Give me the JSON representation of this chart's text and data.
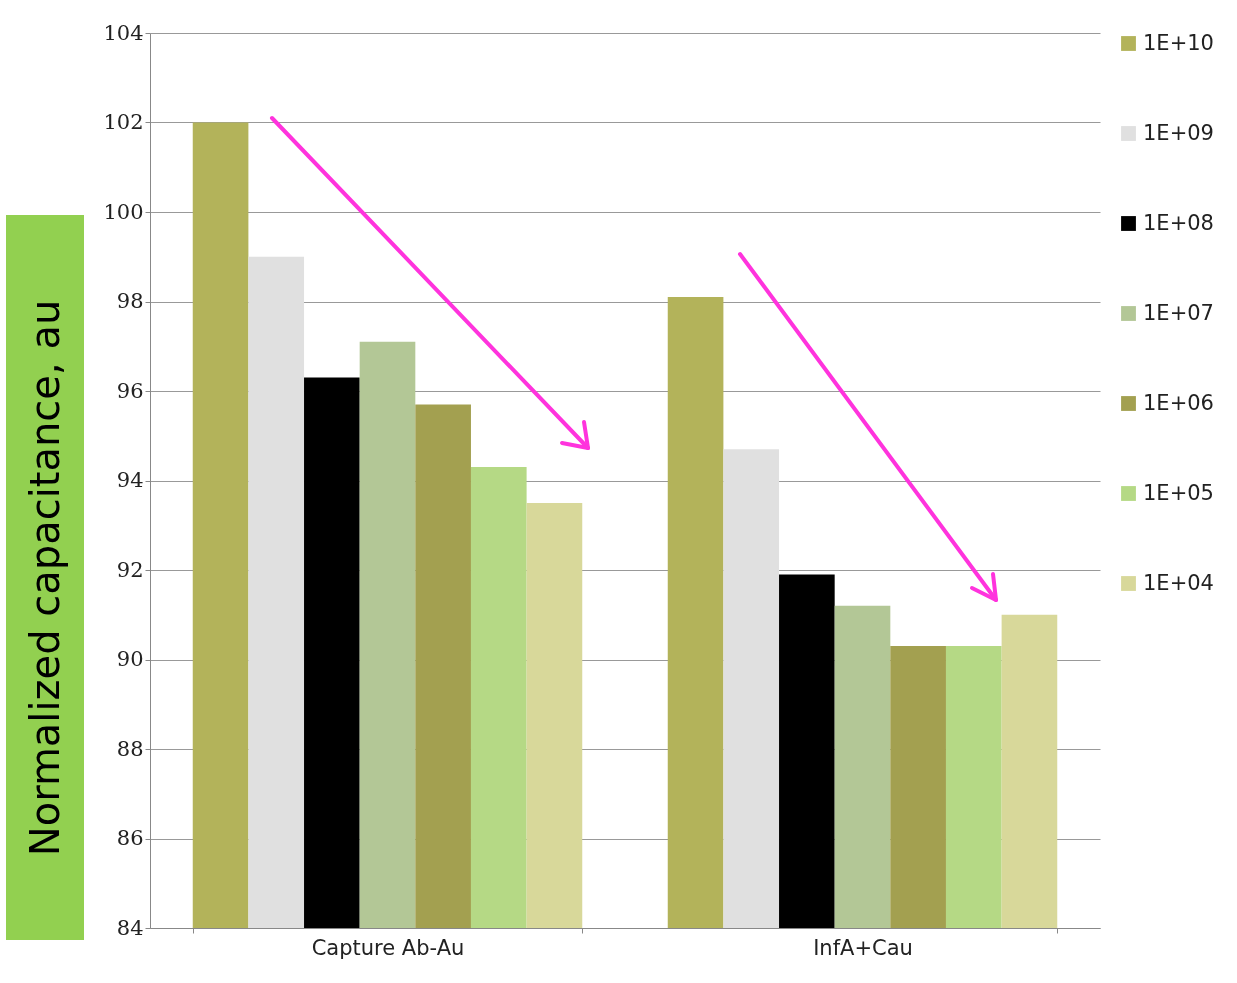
{
  "chart_data": {
    "type": "bar",
    "ylabel": "Normalized capacitance, au",
    "categories": [
      "Capture Ab-Au",
      "InfA+Cau"
    ],
    "series": [
      {
        "name": "1E+10",
        "color": "#b3b35a",
        "values": [
          102.0,
          98.1
        ]
      },
      {
        "name": "1E+09",
        "color": "#e0e0e0",
        "values": [
          99.0,
          94.7
        ]
      },
      {
        "name": "1E+08",
        "color": "#000000",
        "values": [
          96.3,
          91.9
        ]
      },
      {
        "name": "1E+07",
        "color": "#b3c796",
        "values": [
          97.1,
          91.2
        ]
      },
      {
        "name": "1E+06",
        "color": "#a3a050",
        "values": [
          95.7,
          90.3
        ]
      },
      {
        "name": "1E+05",
        "color": "#b5d985",
        "values": [
          94.3,
          90.3
        ]
      },
      {
        "name": "1E+04",
        "color": "#d8d89a",
        "values": [
          93.5,
          91.0
        ]
      }
    ],
    "ylim": [
      84,
      104
    ],
    "yticks": [
      84,
      86,
      88,
      90,
      92,
      94,
      96,
      98,
      100,
      102,
      104
    ],
    "grid": "y",
    "legend": "right"
  }
}
